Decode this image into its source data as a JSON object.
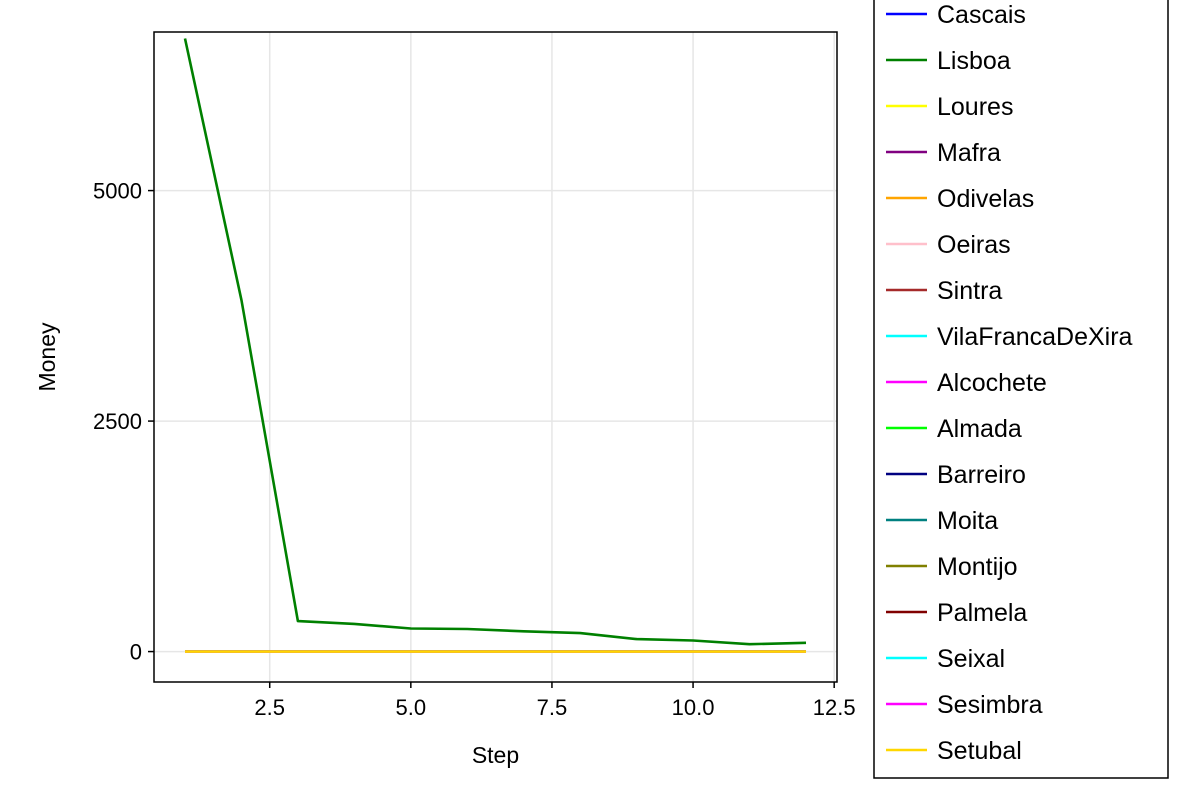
{
  "chart_data": {
    "type": "line",
    "title": "",
    "xlabel": "Step",
    "ylabel": "Money",
    "xlim": [
      0.45,
      12.55
    ],
    "ylim": [
      -330,
      6720
    ],
    "xticks": [
      2.5,
      5.0,
      7.5,
      10.0,
      12.5
    ],
    "xtick_labels": [
      "2.5",
      "5.0",
      "7.5",
      "10.0",
      "12.5"
    ],
    "yticks": [
      0,
      2500,
      5000
    ],
    "ytick_labels": [
      "0",
      "2500",
      "5000"
    ],
    "grid": true,
    "legend_position": "right",
    "x": [
      1,
      2,
      3,
      4,
      5,
      6,
      7,
      8,
      9,
      10,
      11,
      12
    ],
    "series": [
      {
        "name": "Cascais",
        "color": "#0000ff",
        "values": [
          0,
          0,
          0,
          0,
          0,
          0,
          0,
          0,
          0,
          0,
          0,
          0
        ]
      },
      {
        "name": "Lisboa",
        "color": "#008000",
        "values": [
          6650,
          3810,
          330,
          300,
          250,
          245,
          220,
          200,
          135,
          120,
          80,
          95
        ]
      },
      {
        "name": "Loures",
        "color": "#ffff00",
        "values": [
          0,
          0,
          0,
          0,
          0,
          0,
          0,
          0,
          0,
          0,
          0,
          0
        ]
      },
      {
        "name": "Mafra",
        "color": "#800080",
        "values": [
          0,
          0,
          0,
          0,
          0,
          0,
          0,
          0,
          0,
          0,
          0,
          0
        ]
      },
      {
        "name": "Odivelas",
        "color": "#ffa500",
        "values": [
          0,
          0,
          0,
          0,
          0,
          0,
          0,
          0,
          0,
          0,
          0,
          0
        ]
      },
      {
        "name": "Oeiras",
        "color": "#ffc0cb",
        "values": [
          0,
          0,
          0,
          0,
          0,
          0,
          0,
          0,
          0,
          0,
          0,
          0
        ]
      },
      {
        "name": "Sintra",
        "color": "#a52a2a",
        "values": [
          0,
          0,
          0,
          0,
          0,
          0,
          0,
          0,
          0,
          0,
          0,
          0
        ]
      },
      {
        "name": "VilaFrancaDeXira",
        "color": "#00ffff",
        "values": [
          0,
          0,
          0,
          0,
          0,
          0,
          0,
          0,
          0,
          0,
          0,
          0
        ]
      },
      {
        "name": "Alcochete",
        "color": "#ff00ff",
        "values": [
          0,
          0,
          0,
          0,
          0,
          0,
          0,
          0,
          0,
          0,
          0,
          0
        ]
      },
      {
        "name": "Almada",
        "color": "#00ff00",
        "values": [
          0,
          0,
          0,
          0,
          0,
          0,
          0,
          0,
          0,
          0,
          0,
          0
        ]
      },
      {
        "name": "Barreiro",
        "color": "#000080",
        "values": [
          0,
          0,
          0,
          0,
          0,
          0,
          0,
          0,
          0,
          0,
          0,
          0
        ]
      },
      {
        "name": "Moita",
        "color": "#008080",
        "values": [
          0,
          0,
          0,
          0,
          0,
          0,
          0,
          0,
          0,
          0,
          0,
          0
        ]
      },
      {
        "name": "Montijo",
        "color": "#808000",
        "values": [
          0,
          0,
          0,
          0,
          0,
          0,
          0,
          0,
          0,
          0,
          0,
          0
        ]
      },
      {
        "name": "Palmela",
        "color": "#800000",
        "values": [
          0,
          0,
          0,
          0,
          0,
          0,
          0,
          0,
          0,
          0,
          0,
          0
        ]
      },
      {
        "name": "Seixal",
        "color": "#00ffff",
        "values": [
          0,
          0,
          0,
          0,
          0,
          0,
          0,
          0,
          0,
          0,
          0,
          0
        ]
      },
      {
        "name": "Sesimbra",
        "color": "#ff00ff",
        "values": [
          0,
          0,
          0,
          0,
          0,
          0,
          0,
          0,
          0,
          0,
          0,
          0
        ]
      },
      {
        "name": "Setubal",
        "color": "#ffd700",
        "values": [
          0,
          0,
          0,
          0,
          0,
          0,
          0,
          0,
          0,
          0,
          0,
          0
        ]
      }
    ]
  }
}
